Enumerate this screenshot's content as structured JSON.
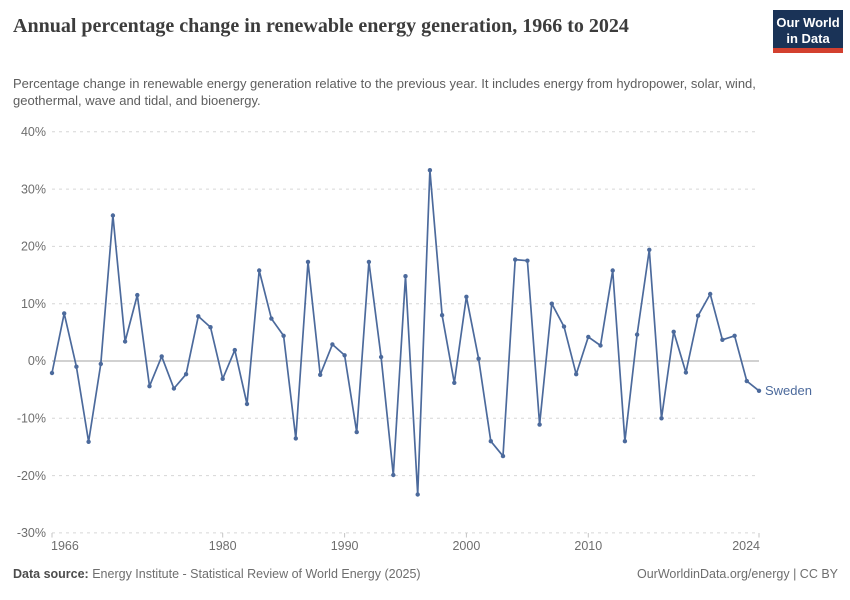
{
  "header": {
    "title": "Annual percentage change in renewable energy generation, 1966 to 2024",
    "subtitle": "Percentage change in renewable energy generation relative to the previous year. It includes energy from hydropower, solar, wind, geothermal, wave and tidal, and bioenergy.",
    "logo": {
      "line1": "Our World",
      "line2": "in Data",
      "bg_color": "#1a3357",
      "accent_color": "#d3402f"
    }
  },
  "chart_data": {
    "type": "line",
    "title": "Annual percentage change in renewable energy generation, 1966 to 2024",
    "entity_label": "Sweden",
    "line_color": "#4C6A9C",
    "grid": true,
    "legend_position": "end-of-line",
    "xlim": [
      1966,
      2024
    ],
    "ylim": [
      -30,
      40
    ],
    "xticks": [
      1966,
      1980,
      1990,
      2000,
      2010,
      2024
    ],
    "yticks": [
      40,
      30,
      20,
      10,
      0,
      -10,
      -20,
      -30
    ],
    "ytick_labels": [
      "40%",
      "30%",
      "20%",
      "10%",
      "0%",
      "-10%",
      "-20%",
      "-30%"
    ],
    "x": [
      1966,
      1967,
      1968,
      1969,
      1970,
      1971,
      1972,
      1973,
      1974,
      1975,
      1976,
      1977,
      1978,
      1979,
      1980,
      1981,
      1982,
      1983,
      1984,
      1985,
      1986,
      1987,
      1988,
      1989,
      1990,
      1991,
      1992,
      1993,
      1994,
      1995,
      1996,
      1997,
      1998,
      1999,
      2000,
      2001,
      2002,
      2003,
      2004,
      2005,
      2006,
      2007,
      2008,
      2009,
      2010,
      2011,
      2012,
      2013,
      2014,
      2015,
      2016,
      2017,
      2018,
      2019,
      2020,
      2021,
      2022,
      2023,
      2024
    ],
    "values": [
      -2.1,
      8.3,
      -1.0,
      -14.1,
      -0.5,
      25.4,
      3.4,
      11.5,
      -4.4,
      0.8,
      -4.8,
      -2.3,
      7.8,
      5.9,
      -3.1,
      1.9,
      -7.5,
      15.8,
      7.4,
      4.4,
      -13.5,
      17.3,
      -2.4,
      2.9,
      1.0,
      -12.4,
      17.3,
      0.7,
      -19.9,
      14.8,
      -23.3,
      33.3,
      8.0,
      -3.8,
      11.2,
      0.4,
      -14.0,
      -16.6,
      17.7,
      17.5,
      -11.1,
      10.0,
      6.0,
      -2.3,
      4.2,
      2.7,
      15.8,
      -14.0,
      4.6,
      19.4,
      -10.0,
      5.1,
      -2.0,
      7.9,
      11.7,
      3.7,
      4.4,
      -3.5,
      -5.2
    ]
  },
  "footer": {
    "source_label": "Data source:",
    "source_text": " Energy Institute - Statistical Review of World Energy (2025)",
    "right_text": "OurWorldinData.org/energy | CC BY"
  }
}
